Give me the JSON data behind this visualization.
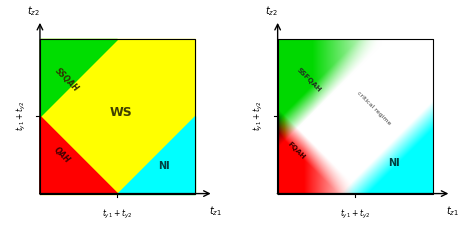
{
  "left": {
    "xlabel": "$t_{z1}$",
    "ylabel": "$t_{z2}$",
    "xtick_label": "$t_{y1} + t_{y2}$",
    "ytick_label": "$t_{y1} + t_{y2}$",
    "green_color": "#00dd00",
    "yellow_color": "#ffff00",
    "red_color": "#ff0000",
    "cyan_color": "#00ffff",
    "label_SSQAH": "SSQAH",
    "label_WS": "WS",
    "label_QAH": "QAH",
    "label_NI": "NI"
  },
  "right": {
    "xlabel": "$t_{z1}$",
    "ylabel": "$t_{z2}$",
    "xtick_label": "$t_{y1} + t_{y2}$",
    "ytick_label": "$t_{y1} + t_{y2}$",
    "label_SSFQAH": "SSFQAH",
    "label_FQAH": "FQAH",
    "label_NI": "NI",
    "label_crit": "critical regime",
    "green_rgb": [
      0.0,
      0.85,
      0.0
    ],
    "red_rgb": [
      1.0,
      0.0,
      0.0
    ],
    "cyan_rgb": [
      0.0,
      1.0,
      1.0
    ]
  },
  "bg_color": "#ffffff"
}
